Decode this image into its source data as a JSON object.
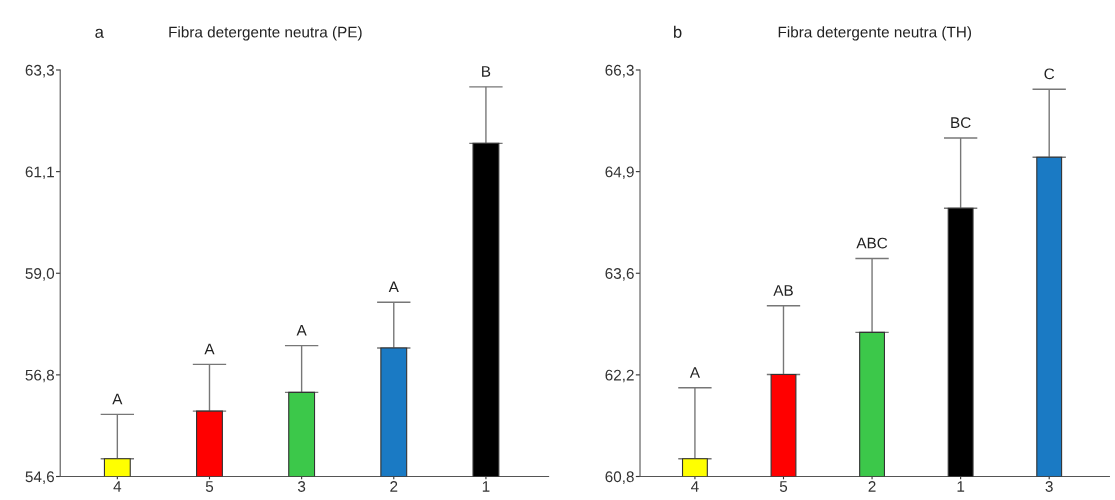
{
  "chart_data": [
    {
      "type": "bar",
      "title": "Fibra detergente neutra (PE)",
      "categories": [
        "4",
        "5",
        "3",
        "2",
        "1"
      ],
      "values": [
        54.98,
        56.0,
        56.4,
        57.35,
        61.73
      ],
      "colors": [
        "#ffff00",
        "#ff0000",
        "#3cc84a",
        "#1a7ac4",
        "#000000"
      ],
      "errors": [
        [
          54.98,
          55.93
        ],
        [
          56.0,
          57.0
        ],
        [
          56.4,
          57.4
        ],
        [
          57.35,
          58.33
        ],
        [
          61.73,
          62.94
        ]
      ],
      "ylim": [
        54.6,
        63.3
      ],
      "yticks": [
        {
          "value": 54.6,
          "label": "54,6"
        },
        {
          "value": 56.775,
          "label": "56,8"
        },
        {
          "value": 58.95,
          "label": "59,0"
        },
        {
          "value": 61.125,
          "label": "61,1"
        },
        {
          "value": 63.3,
          "label": "63,3"
        }
      ],
      "annotations": [
        "a",
        "A",
        "A",
        "A",
        "A",
        "B"
      ]
    },
    {
      "type": "bar",
      "title": "Fibra detergente neutra (TH)",
      "categories": [
        "4",
        "5",
        "2",
        "1",
        "3"
      ],
      "values": [
        61.04,
        62.18,
        62.75,
        64.43,
        65.12
      ],
      "colors": [
        "#ffff00",
        "#ff0000",
        "#3cc84a",
        "#000000",
        "#1a7ac4"
      ],
      "errors": [
        [
          61.04,
          62.0
        ],
        [
          62.18,
          63.11
        ],
        [
          62.75,
          63.75
        ],
        [
          64.43,
          65.38
        ],
        [
          65.12,
          66.04
        ]
      ],
      "ylim": [
        60.8,
        66.3
      ],
      "yticks": [
        {
          "value": 60.8,
          "label": "60,8"
        },
        {
          "value": 62.175,
          "label": "62,2"
        },
        {
          "value": 63.55,
          "label": "63,6"
        },
        {
          "value": 64.925,
          "label": "64,9"
        },
        {
          "value": 66.3,
          "label": "66,3"
        }
      ],
      "annotations": [
        "b",
        "A",
        "AB",
        "ABC",
        "BC",
        "C"
      ]
    }
  ]
}
